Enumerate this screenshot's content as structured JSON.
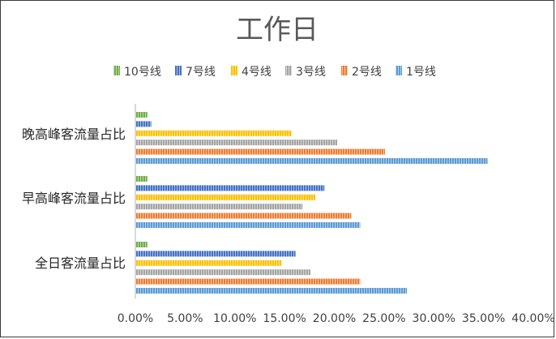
{
  "chart_data": {
    "type": "bar",
    "orientation": "horizontal",
    "title": "工作日",
    "categories": [
      "全日客流量占比",
      "早高峰客流量占比",
      "晚高峰客流量占比"
    ],
    "series": [
      {
        "name": "1号线",
        "color": "#5b9bd5",
        "values": [
          27.3,
          22.6,
          35.4
        ]
      },
      {
        "name": "2号线",
        "color": "#ed7d31",
        "values": [
          22.6,
          21.7,
          25.1
        ]
      },
      {
        "name": "3号线",
        "color": "#a5a5a5",
        "values": [
          17.6,
          16.8,
          20.3
        ]
      },
      {
        "name": "4号线",
        "color": "#ffc000",
        "values": [
          14.7,
          18.1,
          15.7
        ]
      },
      {
        "name": "7号线",
        "color": "#4472c4",
        "values": [
          16.1,
          19.0,
          1.6
        ]
      },
      {
        "name": "10号线",
        "color": "#70ad47",
        "values": [
          1.2,
          1.2,
          1.2
        ]
      }
    ],
    "legend_order": [
      "10号线",
      "7号线",
      "4号线",
      "3号线",
      "2号线",
      "1号线"
    ],
    "xlim": [
      0,
      40
    ],
    "xticks": [
      "0.00%",
      "5.00%",
      "10.00%",
      "15.00%",
      "20.00%",
      "25.00%",
      "30.00%",
      "35.00%",
      "40.00%"
    ],
    "legend_position": "top",
    "grid": false,
    "xlabel": "",
    "ylabel": ""
  }
}
